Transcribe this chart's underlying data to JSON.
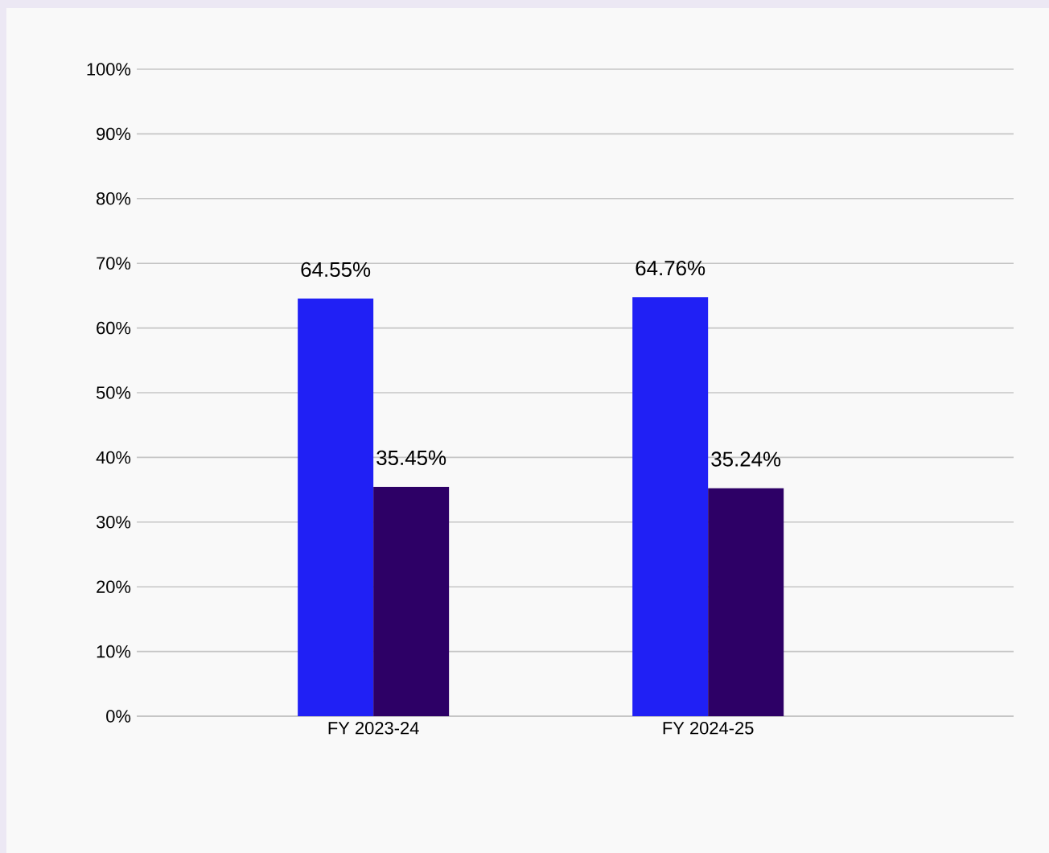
{
  "chart_data": {
    "type": "bar",
    "categories": [
      "FY 2023-24",
      "FY 2024-25"
    ],
    "series": [
      {
        "color": "#2020f5",
        "values": [
          64.55,
          64.76
        ],
        "value_labels": [
          "64.55%",
          "64.76%"
        ]
      },
      {
        "color": "#2d0066",
        "values": [
          35.45,
          35.24
        ],
        "value_labels": [
          "35.45%",
          "35.24%"
        ]
      }
    ],
    "ylim": [
      0,
      100
    ],
    "yticks": [
      {
        "value": 0,
        "label": "0%"
      },
      {
        "value": 10,
        "label": "10%"
      },
      {
        "value": 20,
        "label": "20%"
      },
      {
        "value": 30,
        "label": "30%"
      },
      {
        "value": 40,
        "label": "40%"
      },
      {
        "value": 50,
        "label": "50%"
      },
      {
        "value": 60,
        "label": "60%"
      },
      {
        "value": 70,
        "label": "70%"
      },
      {
        "value": 80,
        "label": "80%"
      },
      {
        "value": 90,
        "label": "90%"
      },
      {
        "value": 100,
        "label": "100%"
      }
    ],
    "grid": "y"
  }
}
